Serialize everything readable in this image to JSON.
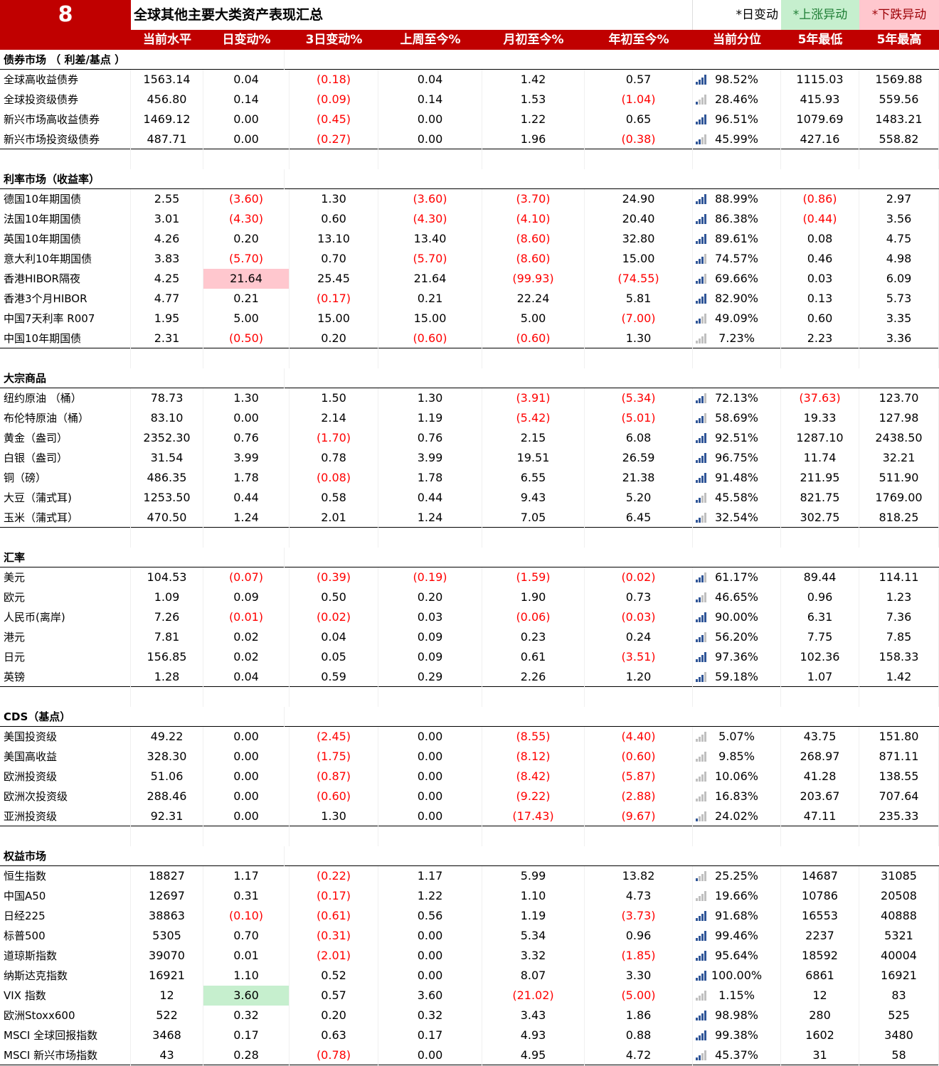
{
  "header_bar": {
    "number": "8",
    "title": "全球其他主要大类资产表现汇总",
    "legend_daily": "*日变动",
    "legend_up": "*上涨异动",
    "legend_down": "*下跌异动"
  },
  "columns": [
    "",
    "当前水平",
    "日变动%",
    "3日变动%",
    "上周至今%",
    "月初至今%",
    "年初至今%",
    "当前分位",
    "5年最低",
    "5年最高"
  ],
  "colors": {
    "brand_red": "#c00000",
    "neg_red": "#ff0000",
    "up_green_bg": "#c6efce",
    "down_red_bg": "#ffc7ce",
    "bar_blue": "#2f5597",
    "bar_grey": "#bfbfbf"
  },
  "sections": [
    {
      "title": "债券市场 （ 利差/基点 ）",
      "rows": [
        {
          "name": "全球高收益债券",
          "v": [
            "1563.14",
            "0.04",
            "(0.18)",
            "0.04",
            "1.42",
            "0.57",
            "98.52%",
            "1115.03",
            "1569.88"
          ],
          "bars": 4
        },
        {
          "name": "全球投资级债券",
          "v": [
            "456.80",
            "0.14",
            "(0.09)",
            "0.14",
            "1.53",
            "(1.04)",
            "28.46%",
            "415.93",
            "559.56"
          ],
          "bars": 1
        },
        {
          "name": "新兴市场高收益债券",
          "v": [
            "1469.12",
            "0.00",
            "(0.45)",
            "0.00",
            "1.22",
            "0.65",
            "96.51%",
            "1079.69",
            "1483.21"
          ],
          "bars": 4
        },
        {
          "name": "新兴市场投资级债券",
          "v": [
            "487.71",
            "0.00",
            "(0.27)",
            "0.00",
            "1.96",
            "(0.38)",
            "45.99%",
            "427.16",
            "558.82"
          ],
          "bars": 2
        }
      ]
    },
    {
      "title": "利率市场（收益率）",
      "rows": [
        {
          "name": "德国10年期国债",
          "v": [
            "2.55",
            "(3.60)",
            "1.30",
            "(3.60)",
            "(3.70)",
            "24.90",
            "88.99%",
            "(0.86)",
            "2.97"
          ],
          "bars": 4
        },
        {
          "name": "法国10年期国债",
          "v": [
            "3.01",
            "(4.30)",
            "0.60",
            "(4.30)",
            "(4.10)",
            "20.40",
            "86.38%",
            "(0.44)",
            "3.56"
          ],
          "bars": 4
        },
        {
          "name": "英国10年期国债",
          "v": [
            "4.26",
            "0.20",
            "13.10",
            "13.40",
            "(8.60)",
            "32.80",
            "89.61%",
            "0.08",
            "4.75"
          ],
          "bars": 4
        },
        {
          "name": "意大利10年期国债",
          "v": [
            "3.83",
            "(5.70)",
            "0.70",
            "(5.70)",
            "(8.60)",
            "15.00",
            "74.57%",
            "0.46",
            "4.98"
          ],
          "bars": 3
        },
        {
          "name": "香港HIBOR隔夜",
          "v": [
            "4.25",
            "21.64",
            "25.45",
            "21.64",
            "(99.93)",
            "(74.55)",
            "69.66%",
            "0.03",
            "6.09"
          ],
          "bars": 3,
          "hl": "red"
        },
        {
          "name": "香港3个月HIBOR",
          "v": [
            "4.77",
            "0.21",
            "(0.17)",
            "0.21",
            "22.24",
            "5.81",
            "82.90%",
            "0.13",
            "5.73"
          ],
          "bars": 4
        },
        {
          "name": "中国7天利率 R007",
          "v": [
            "1.95",
            "5.00",
            "15.00",
            "15.00",
            "5.00",
            "(7.00)",
            "49.09%",
            "0.60",
            "3.35"
          ],
          "bars": 2
        },
        {
          "name": "中国10年期国债",
          "v": [
            "2.31",
            "(0.50)",
            "0.20",
            "(0.60)",
            "(0.60)",
            "1.30",
            "7.23%",
            "2.23",
            "3.36"
          ],
          "bars": 0
        }
      ]
    },
    {
      "title": "大宗商品",
      "rows": [
        {
          "name": "纽约原油 （桶）",
          "v": [
            "78.73",
            "1.30",
            "1.50",
            "1.30",
            "(3.91)",
            "(5.34)",
            "72.13%",
            "(37.63)",
            "123.70"
          ],
          "bars": 3
        },
        {
          "name": "布伦特原油（桶）",
          "v": [
            "83.10",
            "0.00",
            "2.14",
            "1.19",
            "(5.42)",
            "(5.01)",
            "58.69%",
            "19.33",
            "127.98"
          ],
          "bars": 3
        },
        {
          "name": "黄金（盎司）",
          "v": [
            "2352.30",
            "0.76",
            "(1.70)",
            "0.76",
            "2.15",
            "6.08",
            "92.51%",
            "1287.10",
            "2438.50"
          ],
          "bars": 4
        },
        {
          "name": "白银（盎司）",
          "v": [
            "31.54",
            "3.99",
            "0.78",
            "3.99",
            "19.51",
            "26.59",
            "96.75%",
            "11.74",
            "32.21"
          ],
          "bars": 4
        },
        {
          "name": "铜（磅）",
          "v": [
            "486.35",
            "1.78",
            "(0.08)",
            "1.78",
            "6.55",
            "21.38",
            "91.48%",
            "211.95",
            "511.90"
          ],
          "bars": 4
        },
        {
          "name": "大豆（蒲式耳)",
          "v": [
            "1253.50",
            "0.44",
            "0.58",
            "0.44",
            "9.43",
            "5.20",
            "45.58%",
            "821.75",
            "1769.00"
          ],
          "bars": 2
        },
        {
          "name": "玉米（蒲式耳）",
          "v": [
            "470.50",
            "1.24",
            "2.01",
            "1.24",
            "7.05",
            "6.45",
            "32.54%",
            "302.75",
            "818.25"
          ],
          "bars": 2
        }
      ]
    },
    {
      "title": "汇率",
      "rows": [
        {
          "name": "美元",
          "v": [
            "104.53",
            "(0.07)",
            "(0.39)",
            "(0.19)",
            "(1.59)",
            "(0.02)",
            "61.17%",
            "89.44",
            "114.11"
          ],
          "bars": 3
        },
        {
          "name": "欧元",
          "v": [
            "1.09",
            "0.09",
            "0.50",
            "0.20",
            "1.90",
            "0.73",
            "46.65%",
            "0.96",
            "1.23"
          ],
          "bars": 2
        },
        {
          "name": "人民币(离岸)",
          "v": [
            "7.26",
            "(0.01)",
            "(0.02)",
            "0.03",
            "(0.06)",
            "(0.03)",
            "90.00%",
            "6.31",
            "7.36"
          ],
          "bars": 4
        },
        {
          "name": "港元",
          "v": [
            "7.81",
            "0.02",
            "0.04",
            "0.09",
            "0.23",
            "0.24",
            "56.20%",
            "7.75",
            "7.85"
          ],
          "bars": 3
        },
        {
          "name": "日元",
          "v": [
            "156.85",
            "0.02",
            "0.05",
            "0.09",
            "0.61",
            "(3.51)",
            "97.36%",
            "102.36",
            "158.33"
          ],
          "bars": 4
        },
        {
          "name": "英镑",
          "v": [
            "1.28",
            "0.04",
            "0.59",
            "0.29",
            "2.26",
            "1.20",
            "59.18%",
            "1.07",
            "1.42"
          ],
          "bars": 3
        }
      ]
    },
    {
      "title": "CDS（基点）",
      "rows": [
        {
          "name": "美国投资级",
          "v": [
            "49.22",
            "0.00",
            "(2.45)",
            "0.00",
            "(8.55)",
            "(4.40)",
            "5.07%",
            "43.75",
            "151.80"
          ],
          "bars": 0
        },
        {
          "name": "美国高收益",
          "v": [
            "328.30",
            "0.00",
            "(1.75)",
            "0.00",
            "(8.12)",
            "(0.60)",
            "9.85%",
            "268.97",
            "871.11"
          ],
          "bars": 0
        },
        {
          "name": "欧洲投资级",
          "v": [
            "51.06",
            "0.00",
            "(0.87)",
            "0.00",
            "(8.42)",
            "(5.87)",
            "10.06%",
            "41.28",
            "138.55"
          ],
          "bars": 0
        },
        {
          "name": "欧洲次投资级",
          "v": [
            "288.46",
            "0.00",
            "(0.60)",
            "0.00",
            "(9.22)",
            "(2.88)",
            "16.83%",
            "203.67",
            "707.64"
          ],
          "bars": 0
        },
        {
          "name": "亚洲投资级",
          "v": [
            "92.31",
            "0.00",
            "1.30",
            "0.00",
            "(17.43)",
            "(9.67)",
            "24.02%",
            "47.11",
            "235.33"
          ],
          "bars": 1
        }
      ]
    },
    {
      "title": "权益市场",
      "rows": [
        {
          "name": "恒生指数",
          "v": [
            "18827",
            "1.17",
            "(0.22)",
            "1.17",
            "5.99",
            "13.82",
            "25.25%",
            "14687",
            "31085"
          ],
          "bars": 1
        },
        {
          "name": "中国A50",
          "v": [
            "12697",
            "0.31",
            "(0.17)",
            "1.22",
            "1.10",
            "4.73",
            "19.66%",
            "10786",
            "20508"
          ],
          "bars": 0
        },
        {
          "name": "日经225",
          "v": [
            "38863",
            "(0.10)",
            "(0.61)",
            "0.56",
            "1.19",
            "(3.73)",
            "91.68%",
            "16553",
            "40888"
          ],
          "bars": 4
        },
        {
          "name": "标普500",
          "v": [
            "5305",
            "0.70",
            "(0.31)",
            "0.00",
            "5.34",
            "0.96",
            "99.46%",
            "2237",
            "5321"
          ],
          "bars": 4
        },
        {
          "name": "道琼斯指数",
          "v": [
            "39070",
            "0.01",
            "(2.01)",
            "0.00",
            "3.32",
            "(1.85)",
            "95.64%",
            "18592",
            "40004"
          ],
          "bars": 4
        },
        {
          "name": "纳斯达克指数",
          "v": [
            "16921",
            "1.10",
            "0.52",
            "0.00",
            "8.07",
            "3.30",
            "100.00%",
            "6861",
            "16921"
          ],
          "bars": 4
        },
        {
          "name": "VIX 指数",
          "v": [
            "12",
            "3.60",
            "0.57",
            "3.60",
            "(21.02)",
            "(5.00)",
            "1.15%",
            "12",
            "83"
          ],
          "bars": 0,
          "hl": "green"
        },
        {
          "name": "欧洲Stoxx600",
          "v": [
            "522",
            "0.32",
            "0.20",
            "0.32",
            "3.43",
            "1.86",
            "98.98%",
            "280",
            "525"
          ],
          "bars": 4
        },
        {
          "name": "MSCI 全球回报指数",
          "v": [
            "3468",
            "0.17",
            "0.63",
            "0.17",
            "4.93",
            "0.88",
            "99.38%",
            "1602",
            "3480"
          ],
          "bars": 4
        },
        {
          "name": "MSCI 新兴市场指数",
          "v": [
            "43",
            "0.28",
            "(0.78)",
            "0.00",
            "4.95",
            "4.72",
            "45.37%",
            "31",
            "58"
          ],
          "bars": 2
        }
      ]
    }
  ]
}
